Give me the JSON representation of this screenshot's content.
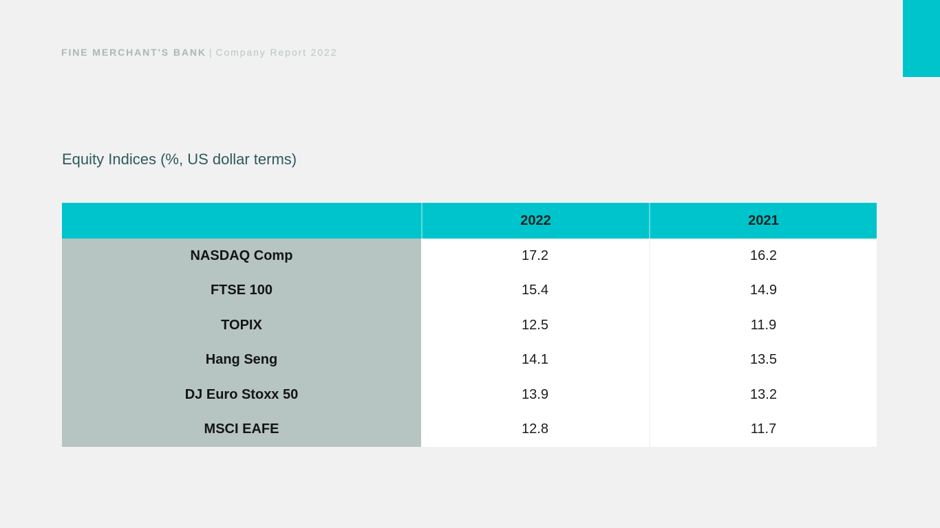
{
  "header": {
    "brand": "FINE MERCHANT'S BANK",
    "separator": "|",
    "report": "Company Report 2022"
  },
  "main": {
    "title": "Equity Indices (%, US dollar terms)"
  },
  "colors": {
    "accent_teal": "#00c4cc",
    "label_column_bg": "#b6c5c2",
    "page_background": "#f1f1f2",
    "title_text": "#2d5a5c"
  },
  "chart_data": {
    "type": "table",
    "title": "Equity Indices (%, US dollar terms)",
    "columns": [
      "",
      "2022",
      "2021"
    ],
    "rows": [
      {
        "label": "NASDAQ Comp",
        "values": [
          "17.2",
          "16.2"
        ]
      },
      {
        "label": "FTSE 100",
        "values": [
          "15.4",
          "14.9"
        ]
      },
      {
        "label": "TOPIX",
        "values": [
          "12.5",
          "11.9"
        ]
      },
      {
        "label": "Hang Seng",
        "values": [
          "14.1",
          "13.5"
        ]
      },
      {
        "label": "DJ Euro Stoxx 50",
        "values": [
          "13.9",
          "13.2"
        ]
      },
      {
        "label": "MSCI EAFE",
        "values": [
          "12.8",
          "11.7"
        ]
      }
    ]
  }
}
